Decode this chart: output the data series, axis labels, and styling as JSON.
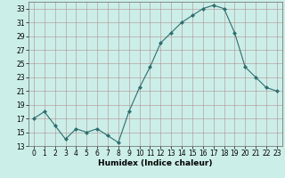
{
  "x": [
    0,
    1,
    2,
    3,
    4,
    5,
    6,
    7,
    8,
    9,
    10,
    11,
    12,
    13,
    14,
    15,
    16,
    17,
    18,
    19,
    20,
    21,
    22,
    23
  ],
  "y": [
    17,
    18,
    16,
    14,
    15.5,
    15,
    15.5,
    14.5,
    13.5,
    18,
    21.5,
    24.5,
    28,
    29.5,
    31,
    32,
    33,
    33.5,
    33,
    29.5,
    24.5,
    23,
    21.5,
    21
  ],
  "line_color": "#2d6e6e",
  "marker": "D",
  "marker_size": 2,
  "bg_color": "#cceee8",
  "grid_color": "#b09090",
  "xlabel": "Humidex (Indice chaleur)",
  "xlim": [
    -0.5,
    23.5
  ],
  "ylim": [
    13,
    34
  ],
  "yticks": [
    13,
    15,
    17,
    19,
    21,
    23,
    25,
    27,
    29,
    31,
    33
  ],
  "xticks": [
    0,
    1,
    2,
    3,
    4,
    5,
    6,
    7,
    8,
    9,
    10,
    11,
    12,
    13,
    14,
    15,
    16,
    17,
    18,
    19,
    20,
    21,
    22,
    23
  ],
  "tick_fontsize": 5.5,
  "xlabel_fontsize": 6.5
}
